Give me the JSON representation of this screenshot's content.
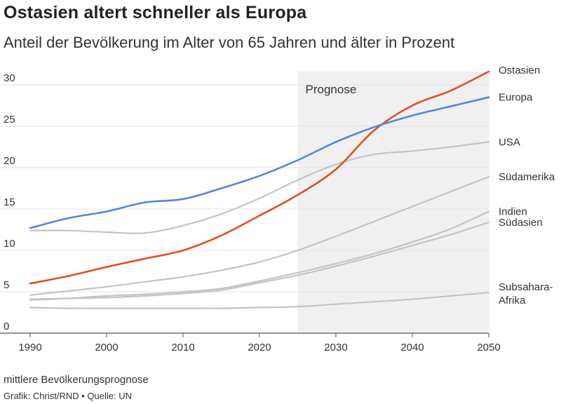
{
  "title": "Ostasien altert schneller als Europa",
  "subtitle": "Anteil der Bevölkerung im Alter von 65 Jahren und älter in Prozent",
  "footnote": "mittlere Bevölkerungsprognose",
  "credit": "Grafik: Christ/RND • Quelle: UN",
  "chart_data": {
    "type": "line",
    "forecast_label": "Prognose",
    "forecast_range": [
      2025,
      2050
    ],
    "xlim": [
      1990,
      2050
    ],
    "ylim": [
      0,
      32
    ],
    "x_ticks": [
      1990,
      2000,
      2010,
      2020,
      2030,
      2040,
      2050
    ],
    "y_ticks": [
      0,
      5,
      10,
      15,
      20,
      25,
      30
    ],
    "grid": "horizontal",
    "x": [
      1990,
      1995,
      2000,
      2005,
      2010,
      2015,
      2020,
      2025,
      2030,
      2035,
      2040,
      2045,
      2050
    ],
    "series": [
      {
        "name": "Ostasien",
        "color": "#e0501e",
        "values": [
          6.0,
          6.9,
          8.0,
          9.0,
          10.0,
          11.8,
          14.2,
          16.7,
          19.8,
          24.5,
          27.5,
          29.3,
          31.6
        ]
      },
      {
        "name": "Europa",
        "color": "#5585e4",
        "values": [
          12.7,
          13.9,
          14.7,
          15.8,
          16.2,
          17.5,
          19.0,
          20.9,
          23.1,
          24.9,
          26.3,
          27.4,
          28.5
        ]
      },
      {
        "name": "USA",
        "color": "#c4c4c4",
        "values": [
          12.4,
          12.4,
          12.2,
          12.1,
          13.0,
          14.4,
          16.3,
          18.5,
          20.4,
          21.6,
          22.0,
          22.5,
          23.1
        ]
      },
      {
        "name": "Südamerika",
        "color": "#c4c4c4",
        "values": [
          4.6,
          5.1,
          5.6,
          6.2,
          6.8,
          7.6,
          8.6,
          10.0,
          11.7,
          13.5,
          15.3,
          17.1,
          18.9
        ]
      },
      {
        "name": "Indien",
        "color": "#c4c4c4",
        "values": [
          4.0,
          4.2,
          4.5,
          4.7,
          5.0,
          5.4,
          6.3,
          7.3,
          8.4,
          9.6,
          11.0,
          12.6,
          14.7
        ]
      },
      {
        "name": "Südasien",
        "color": "#c4c4c4",
        "values": [
          4.1,
          4.2,
          4.3,
          4.5,
          4.8,
          5.2,
          6.1,
          7.0,
          8.1,
          9.3,
          10.6,
          11.9,
          13.4
        ]
      },
      {
        "name": "Subsahara-Afrika",
        "color": "#c4c4c4",
        "values": [
          3.1,
          3.0,
          3.0,
          3.0,
          3.0,
          3.0,
          3.1,
          3.2,
          3.5,
          3.8,
          4.1,
          4.5,
          4.9
        ]
      }
    ]
  }
}
